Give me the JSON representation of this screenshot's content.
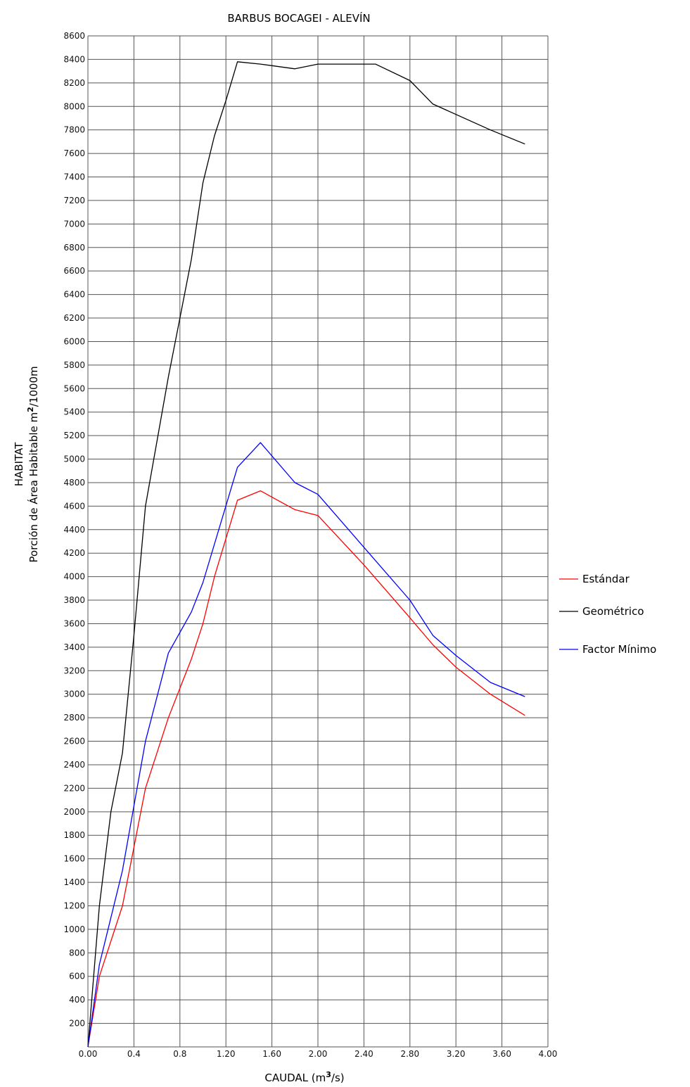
{
  "chart_data": {
    "type": "line",
    "title": "BARBUS BOCAGEI - ALEVÍN",
    "xlabel_pre": "CAUDAL (m",
    "xlabel_sup": "3",
    "xlabel_post": "/s)",
    "ylabel_line1": "HABITAT",
    "ylabel_line2_pre": "Porción de Área Habitable  m",
    "ylabel_line2_sup": "2",
    "ylabel_line2_post": "/1000m",
    "xlim": [
      0,
      4.0
    ],
    "ylim": [
      0,
      8600
    ],
    "x_ticks": [
      "0.00",
      "0.4",
      "0.8",
      "1.20",
      "1.60",
      "2.00",
      "2.40",
      "2.80",
      "3.20",
      "3.60",
      "4.00"
    ],
    "y_ticks": [
      "200",
      "400",
      "600",
      "800",
      "1000",
      "1200",
      "1400",
      "1600",
      "1800",
      "2000",
      "2200",
      "2400",
      "2600",
      "2800",
      "3000",
      "3200",
      "3400",
      "3600",
      "3800",
      "4000",
      "4200",
      "4400",
      "4600",
      "4800",
      "5000",
      "5200",
      "5400",
      "5600",
      "5800",
      "6000",
      "6200",
      "6400",
      "6600",
      "6800",
      "7000",
      "7200",
      "7400",
      "7600",
      "7800",
      "8000",
      "8200",
      "8400",
      "8600"
    ],
    "grid": true,
    "legend_position": "right",
    "series": [
      {
        "name": "Estándar",
        "color": "#ff0000",
        "x": [
          0,
          0.1,
          0.3,
          0.5,
          0.7,
          0.9,
          1.0,
          1.1,
          1.3,
          1.5,
          1.8,
          2.0,
          2.4,
          2.8,
          3.0,
          3.2,
          3.5,
          3.8
        ],
        "y": [
          0,
          600,
          1200,
          2200,
          2800,
          3300,
          3600,
          4000,
          4650,
          4730,
          4570,
          4520,
          4100,
          3650,
          3420,
          3230,
          3000,
          2820
        ]
      },
      {
        "name": "Geométrico",
        "color": "#000000",
        "x": [
          0,
          0.1,
          0.2,
          0.3,
          0.4,
          0.5,
          0.6,
          0.7,
          0.8,
          0.9,
          1.0,
          1.1,
          1.2,
          1.3,
          1.5,
          1.8,
          2.0,
          2.5,
          2.8,
          3.0,
          3.5,
          3.8
        ],
        "y": [
          0,
          1200,
          2000,
          2500,
          3500,
          4600,
          5150,
          5700,
          6200,
          6700,
          7350,
          7750,
          8050,
          8380,
          8360,
          8320,
          8360,
          8360,
          8220,
          8020,
          7800,
          7680
        ]
      },
      {
        "name": "Factor Mínimo",
        "color": "#0000ff",
        "x": [
          0,
          0.1,
          0.2,
          0.3,
          0.4,
          0.5,
          0.7,
          0.9,
          1.0,
          1.3,
          1.5,
          1.8,
          2.0,
          2.4,
          2.8,
          3.0,
          3.2,
          3.5,
          3.8
        ],
        "y": [
          0,
          700,
          1100,
          1500,
          2050,
          2600,
          3350,
          3700,
          3950,
          4930,
          5140,
          4800,
          4700,
          4250,
          3800,
          3500,
          3330,
          3100,
          2980
        ]
      }
    ]
  }
}
